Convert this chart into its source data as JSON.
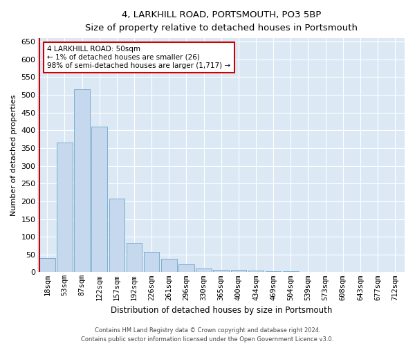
{
  "title": "4, LARKHILL ROAD, PORTSMOUTH, PO3 5BP",
  "subtitle": "Size of property relative to detached houses in Portsmouth",
  "xlabel": "Distribution of detached houses by size in Portsmouth",
  "ylabel": "Number of detached properties",
  "categories": [
    "18sqm",
    "53sqm",
    "87sqm",
    "122sqm",
    "157sqm",
    "192sqm",
    "226sqm",
    "261sqm",
    "296sqm",
    "330sqm",
    "365sqm",
    "400sqm",
    "434sqm",
    "469sqm",
    "504sqm",
    "539sqm",
    "573sqm",
    "608sqm",
    "643sqm",
    "677sqm",
    "712sqm"
  ],
  "values": [
    40,
    365,
    515,
    410,
    207,
    83,
    57,
    38,
    22,
    10,
    7,
    6,
    5,
    3,
    2,
    1,
    0,
    0,
    0,
    1,
    0
  ],
  "bar_color": "#c5d8ed",
  "bar_edge_color": "#7aaece",
  "highlight_color": "#cc0000",
  "annotation_text": "4 LARKHILL ROAD: 50sqm\n← 1% of detached houses are smaller (26)\n98% of semi-detached houses are larger (1,717) →",
  "annotation_box_color": "#ffffff",
  "annotation_box_edge": "#cc0000",
  "ylim": [
    0,
    660
  ],
  "yticks": [
    0,
    50,
    100,
    150,
    200,
    250,
    300,
    350,
    400,
    450,
    500,
    550,
    600,
    650
  ],
  "plot_bg_color": "#dce9f5",
  "grid_color": "#ffffff",
  "footer_line1": "Contains HM Land Registry data © Crown copyright and database right 2024.",
  "footer_line2": "Contains public sector information licensed under the Open Government Licence v3.0."
}
